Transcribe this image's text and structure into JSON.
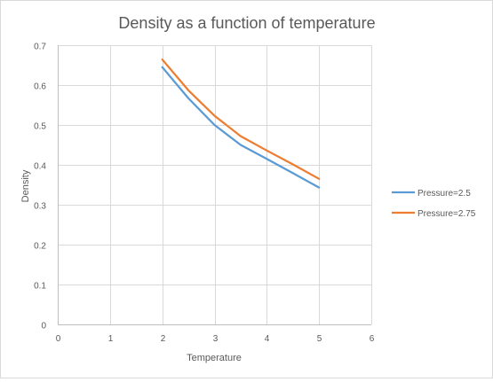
{
  "chart_data": {
    "type": "line",
    "title": "Density as a function of temperature",
    "xlabel": "Temperature",
    "ylabel": "Density",
    "xlim": [
      0,
      6
    ],
    "ylim": [
      0,
      0.7
    ],
    "xticks": [
      "0",
      "1",
      "2",
      "3",
      "4",
      "5",
      "6"
    ],
    "yticks": [
      "0",
      "0.1",
      "0.2",
      "0.3",
      "0.4",
      "0.5",
      "0.6",
      "0.7"
    ],
    "grid": true,
    "legend_position": "right",
    "series": [
      {
        "name": "Pressure=2.5",
        "color": "#5b9bd5",
        "x": [
          2,
          2.5,
          3,
          3.5,
          4,
          4.5,
          5
        ],
        "y": [
          0.645,
          0.567,
          0.5,
          0.45,
          0.415,
          0.379,
          0.343
        ]
      },
      {
        "name": "Pressure=2.75",
        "color": "#ed7d31",
        "x": [
          2,
          2.5,
          3,
          3.5,
          4,
          4.5,
          5
        ],
        "y": [
          0.664,
          0.587,
          0.523,
          0.472,
          0.436,
          0.401,
          0.365
        ]
      }
    ]
  }
}
